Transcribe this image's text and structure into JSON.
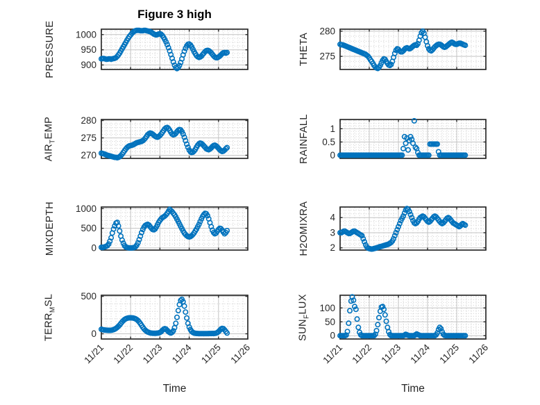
{
  "title": "Figure 3 high",
  "x_axis": {
    "label": "Time",
    "tick_labels": [
      "11/21",
      "11/22",
      "11/23",
      "11/24",
      "11/25",
      "11/26"
    ]
  },
  "marker_color": "#0072BD",
  "chart_data": {
    "type": "scatter",
    "marker": "open-circle",
    "grid": "major solid + dotted minor",
    "x_sampling": "hourly; t_days = index/24, from 11/21 00:00 to 11/25 07:00 (104 points per series)",
    "x_range_days": [
      0,
      5
    ],
    "x_minor_step_days": 0.16667,
    "x_tick_labels": [
      "11/21",
      "11/22",
      "11/23",
      "11/24",
      "11/25",
      "11/26"
    ],
    "charts": [
      {
        "id": "pressure",
        "row": 0,
        "col": 0,
        "ylabel_parts": [
          {
            "t": "PRESSURE"
          }
        ],
        "yticks": [
          900,
          950,
          1000
        ],
        "ylim": [
          885,
          1018
        ],
        "y_minor_step": 12.5,
        "values": [
          920,
          921,
          921,
          920,
          919,
          919,
          920,
          920,
          919,
          920,
          921,
          922,
          924,
          928,
          933,
          939,
          946,
          953,
          960,
          967,
          974,
          981,
          988,
          994,
          999,
          1004,
          1008,
          1011,
          1013,
          1014,
          1014,
          1014,
          1013,
          1013,
          1013,
          1014,
          1014,
          1013,
          1012,
          1011,
          1010,
          1008,
          1005,
          1002,
          1000,
          999,
          1000,
          1002,
          1003,
          1001,
          997,
          991,
          984,
          976,
          967,
          957,
          946,
          934,
          922,
          910,
          899,
          891,
          888,
          891,
          898,
          908,
          920,
          933,
          945,
          955,
          963,
          968,
          969,
          966,
          960,
          952,
          944,
          937,
          931,
          927,
          925,
          926,
          929,
          934,
          939,
          944,
          947,
          948,
          947,
          944,
          940,
          935,
          930,
          926,
          924,
          924,
          926,
          929,
          933,
          937,
          940,
          941,
          939,
          941
        ]
      },
      {
        "id": "theta",
        "row": 0,
        "col": 1,
        "ylabel_parts": [
          {
            "t": "THETA"
          }
        ],
        "yticks": [
          275,
          280
        ],
        "ylim": [
          272.4,
          280.4
        ],
        "y_minor_step": 1,
        "values": [
          277.4,
          277.3,
          277.3,
          277.2,
          277.1,
          277,
          276.9,
          276.8,
          276.7,
          276.6,
          276.5,
          276.4,
          276.3,
          276.2,
          276.1,
          276,
          275.9,
          275.8,
          275.7,
          275.6,
          275.5,
          275.4,
          275.2,
          275,
          274.7,
          274.3,
          274,
          273.6,
          273.2,
          272.9,
          272.7,
          272.6,
          272.8,
          273.2,
          273.7,
          274.2,
          274.5,
          274.4,
          274,
          273.6,
          273.3,
          273.2,
          273.4,
          274,
          274.8,
          275.6,
          276.2,
          276.5,
          276.4,
          276.1,
          275.9,
          275.9,
          276.1,
          276.4,
          276.6,
          276.7,
          276.6,
          276.5,
          276.6,
          276.8,
          277,
          277.2,
          277.3,
          277.2,
          277.5,
          278.2,
          279,
          279.7,
          280,
          279.6,
          278.8,
          277.9,
          277.1,
          276.5,
          276.2,
          276.1,
          276.3,
          276.6,
          276.9,
          277.1,
          277.3,
          277.4,
          277.4,
          277.3,
          277.1,
          276.9,
          276.8,
          276.9,
          277.1,
          277.3,
          277.5,
          277.7,
          277.8,
          277.7,
          277.5,
          277.4,
          277.4,
          277.5,
          277.6,
          277.6,
          277.5,
          277.4,
          277.3,
          277.2
        ]
      },
      {
        "id": "air_temp",
        "row": 1,
        "col": 0,
        "ylabel_parts": [
          {
            "t": "AIR"
          },
          {
            "t": "T",
            "sub": true
          },
          {
            "t": "EMP"
          }
        ],
        "yticks": [
          270,
          275,
          280
        ],
        "ylim": [
          269.1,
          280.3
        ],
        "y_minor_step": 1,
        "values": [
          270.6,
          270.5,
          270.4,
          270.3,
          270.1,
          270,
          269.9,
          269.8,
          269.7,
          269.6,
          269.5,
          269.4,
          269.4,
          269.3,
          269.4,
          269.6,
          269.9,
          270.3,
          270.8,
          271.3,
          271.8,
          272.2,
          272.5,
          272.7,
          272.8,
          272.9,
          273,
          273.2,
          273.4,
          273.6,
          273.7,
          273.8,
          273.9,
          274,
          274.2,
          274.5,
          274.9,
          275.4,
          275.9,
          276.2,
          276.4,
          276.3,
          276.1,
          275.8,
          275.5,
          275.3,
          275.2,
          275.4,
          275.7,
          276.1,
          276.6,
          277.1,
          277.6,
          277.9,
          278,
          277.7,
          277.2,
          276.6,
          276.1,
          275.9,
          276,
          276.3,
          276.8,
          277.2,
          277.4,
          277.3,
          276.8,
          276.1,
          275.2,
          274.2,
          273.2,
          272.3,
          271.5,
          271,
          270.8,
          270.9,
          271.2,
          271.7,
          272.3,
          272.9,
          273.3,
          273.5,
          273.4,
          273.1,
          272.7,
          272.3,
          271.9,
          271.7,
          271.6,
          271.8,
          272.1,
          272.5,
          272.8,
          272.9,
          272.7,
          272.4,
          272,
          271.6,
          271.3,
          271.1,
          271.2,
          271.5,
          271.9,
          272.2
        ]
      },
      {
        "id": "rainfall",
        "row": 1,
        "col": 1,
        "ylabel_parts": [
          {
            "t": "RAINFALL"
          }
        ],
        "yticks": [
          0,
          0.5,
          1
        ],
        "ylim": [
          -0.12,
          1.35
        ],
        "y_minor_step": 0.1,
        "values": [
          0,
          0,
          0,
          0,
          0,
          0,
          0,
          0,
          0,
          0,
          0,
          0,
          0,
          0,
          0,
          0,
          0,
          0,
          0,
          0,
          0,
          0,
          0,
          0,
          0,
          0,
          0,
          0,
          0,
          0,
          0,
          0,
          0,
          0,
          0,
          0,
          0,
          0,
          0,
          0,
          0,
          0,
          0,
          0,
          0,
          0,
          0,
          0,
          0,
          0,
          0,
          0,
          0.25,
          0.7,
          0.45,
          0.65,
          0.2,
          0.55,
          0.7,
          0.6,
          0.45,
          1.3,
          0.3,
          0.25,
          0.1,
          0,
          0,
          0,
          0,
          0,
          0,
          0,
          0,
          0,
          0.42,
          0.42,
          0.42,
          0.42,
          0.42,
          0.42,
          0.42,
          0.13,
          0,
          0,
          0,
          0,
          0,
          0,
          0,
          0,
          0,
          0,
          0,
          0,
          0,
          0,
          0,
          0,
          0,
          0,
          0,
          0,
          0,
          0
        ]
      },
      {
        "id": "mixdepth",
        "row": 2,
        "col": 0,
        "ylabel_parts": [
          {
            "t": "MIXDEPTH"
          }
        ],
        "yticks": [
          0,
          500,
          1000
        ],
        "ylim": [
          -55,
          1040
        ],
        "y_minor_step": 100,
        "values": [
          15,
          10,
          20,
          30,
          40,
          60,
          100,
          170,
          260,
          380,
          480,
          560,
          630,
          650,
          560,
          430,
          300,
          200,
          120,
          60,
          25,
          10,
          5,
          0,
          0,
          0,
          5,
          10,
          30,
          70,
          130,
          210,
          300,
          390,
          470,
          530,
          570,
          590,
          600,
          580,
          540,
          500,
          470,
          460,
          480,
          530,
          590,
          650,
          700,
          740,
          770,
          790,
          810,
          840,
          880,
          930,
          980,
          950,
          920,
          880,
          840,
          790,
          730,
          670,
          610,
          550,
          490,
          430,
          380,
          340,
          310,
          290,
          280,
          290,
          310,
          340,
          380,
          430,
          480,
          540,
          600,
          670,
          740,
          800,
          850,
          880,
          870,
          820,
          740,
          640,
          540,
          450,
          390,
          360,
          380,
          420,
          470,
          500,
          490,
          450,
          400,
          360,
          390,
          440
        ]
      },
      {
        "id": "h2omixra",
        "row": 2,
        "col": 1,
        "ylabel_parts": [
          {
            "t": "H2OMIXRA"
          }
        ],
        "yticks": [
          2,
          3,
          4
        ],
        "ylim": [
          1.85,
          4.7
        ],
        "y_minor_step": 0.25,
        "values": [
          3,
          3,
          3.05,
          3.1,
          3.1,
          3.05,
          3,
          2.95,
          2.95,
          3,
          3.05,
          3.1,
          3.1,
          3.05,
          3,
          2.95,
          2.9,
          2.85,
          2.8,
          2.6,
          2.4,
          2.2,
          2.05,
          1.98,
          1.95,
          1.93,
          1.92,
          1.93,
          1.95,
          1.97,
          2,
          2.02,
          2.05,
          2.08,
          2.1,
          2.12,
          2.15,
          2.17,
          2.2,
          2.22,
          2.25,
          2.3,
          2.35,
          2.45,
          2.6,
          2.8,
          3,
          3.2,
          3.4,
          3.6,
          3.8,
          3.95,
          4.1,
          4.3,
          4.5,
          4.6,
          4.55,
          4.4,
          4.2,
          4,
          3.8,
          3.65,
          3.6,
          3.65,
          3.75,
          3.9,
          4,
          4.05,
          4.1,
          4.05,
          3.95,
          3.85,
          3.75,
          3.7,
          3.75,
          3.85,
          3.95,
          4.05,
          4.1,
          4.05,
          3.95,
          3.85,
          3.75,
          3.65,
          3.6,
          3.65,
          3.75,
          3.85,
          3.95,
          4,
          3.95,
          3.85,
          3.75,
          3.65,
          3.6,
          3.55,
          3.5,
          3.45,
          3.4,
          3.45,
          3.55,
          3.6,
          3.55,
          3.5
        ]
      },
      {
        "id": "terr_msl",
        "row": 3,
        "col": 0,
        "ylabel_parts": [
          {
            "t": "TERR"
          },
          {
            "t": "M",
            "sub": true
          },
          {
            "t": "SL"
          }
        ],
        "yticks": [
          0,
          500
        ],
        "ylim": [
          -70,
          515
        ],
        "y_minor_step": 100,
        "values": [
          60,
          55,
          52,
          50,
          48,
          47,
          46,
          46,
          47,
          50,
          55,
          62,
          72,
          85,
          100,
          118,
          138,
          158,
          175,
          190,
          200,
          207,
          211,
          213,
          213,
          212,
          210,
          206,
          200,
          190,
          176,
          158,
          136,
          112,
          88,
          66,
          48,
          34,
          24,
          17,
          12,
          9,
          7,
          6,
          6,
          7,
          9,
          12,
          17,
          28,
          45,
          60,
          68,
          62,
          45,
          28,
          16,
          10,
          20,
          40,
          80,
          140,
          220,
          310,
          390,
          445,
          460,
          430,
          370,
          290,
          210,
          140,
          90,
          55,
          32,
          18,
          10,
          6,
          4,
          3,
          2,
          2,
          2,
          2,
          2,
          2,
          2,
          2,
          3,
          3,
          3,
          4,
          4,
          5,
          8,
          15,
          28,
          45,
          62,
          72,
          68,
          52,
          30,
          10
        ]
      },
      {
        "id": "sun_flux",
        "row": 3,
        "col": 1,
        "ylabel_parts": [
          {
            "t": "SUN"
          },
          {
            "t": "F",
            "sub": true
          },
          {
            "t": "LUX"
          }
        ],
        "yticks": [
          0,
          50,
          100
        ],
        "ylim": [
          -12,
          146
        ],
        "y_minor_step": 10,
        "values": [
          0,
          0,
          0,
          0,
          0,
          2,
          15,
          45,
          90,
          125,
          140,
          128,
          105,
          95,
          60,
          30,
          12,
          3,
          0,
          0,
          0,
          0,
          0,
          0,
          0,
          0,
          0,
          0,
          0,
          5,
          18,
          40,
          65,
          88,
          103,
          105,
          95,
          75,
          52,
          30,
          14,
          4,
          0,
          0,
          0,
          0,
          0,
          0,
          0,
          0,
          0,
          0,
          0,
          2,
          5,
          3,
          1,
          0,
          0,
          0,
          0,
          0,
          3,
          6,
          4,
          2,
          0,
          0,
          0,
          0,
          0,
          0,
          0,
          0,
          0,
          0,
          0,
          0,
          0,
          3,
          10,
          22,
          30,
          25,
          14,
          5,
          1,
          0,
          0,
          0,
          0,
          0,
          0,
          0,
          0,
          0,
          0,
          0,
          0,
          0,
          0,
          0,
          0,
          0
        ]
      }
    ]
  }
}
